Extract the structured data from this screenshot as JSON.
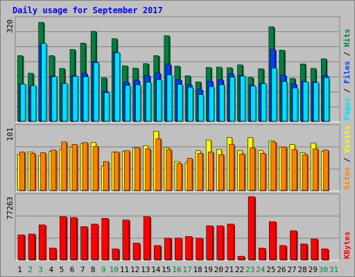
{
  "chart_data": [
    {
      "type": "bar",
      "title": "Daily usage for September 2017",
      "categories": [
        "1",
        "2",
        "3",
        "4",
        "5",
        "6",
        "7",
        "8",
        "9",
        "10",
        "11",
        "12",
        "13",
        "14",
        "15",
        "16",
        "17",
        "18",
        "19",
        "20",
        "21",
        "22",
        "23",
        "24",
        "25",
        "26",
        "27",
        "28",
        "29",
        "30",
        "31"
      ],
      "weekend_days": [
        "2",
        "3",
        "9",
        "10",
        "16",
        "17",
        "23",
        "24",
        "30",
        "31"
      ],
      "ylabel_parts": [
        "Pages",
        "Files",
        "Hits"
      ],
      "ymax_label": "320",
      "ylim": [
        0,
        320
      ],
      "series": [
        {
          "name": "Hits",
          "color": "#008040",
          "values": [
            207,
            152,
            311,
            207,
            167,
            226,
            246,
            283,
            138,
            260,
            175,
            168,
            182,
            207,
            269,
            174,
            144,
            125,
            170,
            171,
            169,
            178,
            139,
            166,
            297,
            224,
            136,
            181,
            167,
            197,
            0
          ]
        },
        {
          "name": "Files",
          "color": "#0040ff",
          "values": [
            118,
            110,
            243,
            143,
            120,
            145,
            152,
            188,
            96,
            218,
            124,
            130,
            145,
            153,
            180,
            132,
            117,
            102,
            127,
            132,
            150,
            145,
            115,
            121,
            226,
            146,
            119,
            127,
            125,
            145,
            0
          ]
        },
        {
          "name": "Pages",
          "color": "#00e0ff",
          "values": [
            118,
            113,
            245,
            141,
            120,
            142,
            141,
            185,
            91,
            216,
            114,
            116,
            124,
            132,
            147,
            117,
            108,
            85,
            110,
            116,
            140,
            143,
            112,
            120,
            168,
            126,
            106,
            125,
            123,
            138,
            0
          ]
        }
      ]
    },
    {
      "type": "bar",
      "ylabel_parts": [
        "Sites",
        "Visits"
      ],
      "ymax_label": "101",
      "ylim": [
        0,
        101
      ],
      "series": [
        {
          "name": "Visits",
          "color": "#ffff00",
          "values": [
            58,
            62,
            56,
            63,
            66,
            70,
            75,
            77,
            40,
            62,
            63,
            69,
            72,
            95,
            69,
            47,
            45,
            64,
            81,
            66,
            85,
            64,
            85,
            64,
            80,
            70,
            74,
            61,
            76,
            63,
            0
          ]
        },
        {
          "name": "Sites",
          "color": "#ff8000",
          "values": [
            62,
            60,
            61,
            65,
            78,
            74,
            77,
            71,
            47,
            62,
            64,
            69,
            67,
            83,
            66,
            44,
            52,
            60,
            62,
            58,
            74,
            59,
            69,
            60,
            78,
            70,
            66,
            58,
            67,
            65,
            0
          ]
        }
      ]
    },
    {
      "type": "bar",
      "ylabel_parts": [
        "KBytes"
      ],
      "ymax_label": "77263",
      "ylim": [
        0,
        77263
      ],
      "series": [
        {
          "name": "KBytes",
          "color": "#ff0000",
          "values": [
            31000,
            32000,
            43000,
            15000,
            53000,
            52000,
            41000,
            44000,
            51000,
            14000,
            49000,
            21000,
            53000,
            18000,
            27000,
            27000,
            29000,
            27000,
            42000,
            42000,
            44000,
            5000,
            79000,
            15000,
            47000,
            18000,
            36000,
            20000,
            26000,
            14000,
            0
          ]
        }
      ]
    }
  ],
  "colors": {
    "background": "#c0c0c0",
    "plot_bg": "#c0c0c0",
    "title": "#0000ff",
    "weekday_label": "#000000",
    "weekend_label": "#008040",
    "bar_outline": "#000000",
    "gridline": "#808080"
  }
}
